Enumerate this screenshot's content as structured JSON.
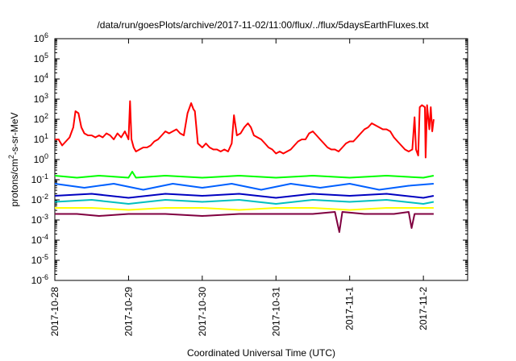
{
  "chart_data": {
    "type": "line",
    "title": "/data/run/goesPlots/archive/2017-11-02/11:00/flux/../flux/5daysEarthFluxes.txt",
    "xlabel": "Coordinated Universal Time (UTC)",
    "ylabel_parts": [
      "protons/cm",
      "2",
      "-s-sr-MeV"
    ],
    "y_scale": "log",
    "ylim_exp": [
      -6,
      6
    ],
    "y_ticks": [
      {
        "base": "10",
        "exp": "6"
      },
      {
        "base": "10",
        "exp": "5"
      },
      {
        "base": "10",
        "exp": "4"
      },
      {
        "base": "10",
        "exp": "3"
      },
      {
        "base": "10",
        "exp": "2"
      },
      {
        "base": "10",
        "exp": "1"
      },
      {
        "base": "10",
        "exp": "0"
      },
      {
        "base": "10",
        "exp": "-1"
      },
      {
        "base": "10",
        "exp": "-2"
      },
      {
        "base": "10",
        "exp": "-3"
      },
      {
        "base": "10",
        "exp": "-4"
      },
      {
        "base": "10",
        "exp": "-5"
      },
      {
        "base": "10",
        "exp": "-6"
      }
    ],
    "x_range_days": [
      0,
      5.6
    ],
    "x_ticks": [
      "2017-10-28",
      "2017-10-29",
      "2017-10-30",
      "2017-10-31",
      "2017-11-1",
      "2017-11-2"
    ],
    "grid": false,
    "legend": "none",
    "series": [
      {
        "color": "#ff0000",
        "points": [
          [
            0.0,
            1.0
          ],
          [
            0.05,
            1.0
          ],
          [
            0.1,
            0.7
          ],
          [
            0.15,
            0.9
          ],
          [
            0.2,
            1.1
          ],
          [
            0.25,
            1.6
          ],
          [
            0.28,
            2.4
          ],
          [
            0.32,
            2.3
          ],
          [
            0.36,
            1.6
          ],
          [
            0.4,
            1.3
          ],
          [
            0.45,
            1.2
          ],
          [
            0.5,
            1.2
          ],
          [
            0.55,
            1.1
          ],
          [
            0.6,
            1.2
          ],
          [
            0.65,
            1.1
          ],
          [
            0.7,
            1.3
          ],
          [
            0.75,
            1.2
          ],
          [
            0.8,
            1.0
          ],
          [
            0.85,
            1.3
          ],
          [
            0.9,
            1.1
          ],
          [
            0.95,
            1.4
          ],
          [
            1.0,
            1.0
          ],
          [
            1.02,
            2.9
          ],
          [
            1.04,
            1.0
          ],
          [
            1.07,
            0.6
          ],
          [
            1.1,
            0.4
          ],
          [
            1.15,
            0.5
          ],
          [
            1.2,
            0.6
          ],
          [
            1.25,
            0.6
          ],
          [
            1.3,
            0.7
          ],
          [
            1.35,
            0.9
          ],
          [
            1.4,
            1.0
          ],
          [
            1.45,
            1.2
          ],
          [
            1.5,
            1.4
          ],
          [
            1.55,
            1.3
          ],
          [
            1.6,
            1.4
          ],
          [
            1.65,
            1.5
          ],
          [
            1.7,
            1.3
          ],
          [
            1.75,
            1.2
          ],
          [
            1.8,
            2.3
          ],
          [
            1.85,
            2.8
          ],
          [
            1.88,
            2.5
          ],
          [
            1.9,
            2.4
          ],
          [
            1.94,
            0.8
          ],
          [
            2.0,
            0.6
          ],
          [
            2.05,
            0.8
          ],
          [
            2.1,
            0.6
          ],
          [
            2.15,
            0.5
          ],
          [
            2.2,
            0.5
          ],
          [
            2.25,
            0.4
          ],
          [
            2.3,
            0.5
          ],
          [
            2.35,
            0.4
          ],
          [
            2.4,
            0.8
          ],
          [
            2.43,
            2.2
          ],
          [
            2.47,
            1.2
          ],
          [
            2.52,
            1.3
          ],
          [
            2.57,
            1.6
          ],
          [
            2.62,
            1.8
          ],
          [
            2.66,
            1.6
          ],
          [
            2.7,
            1.2
          ],
          [
            2.75,
            1.1
          ],
          [
            2.8,
            1.0
          ],
          [
            2.85,
            0.8
          ],
          [
            2.9,
            0.6
          ],
          [
            2.95,
            0.5
          ],
          [
            3.0,
            0.3
          ],
          [
            3.05,
            0.4
          ],
          [
            3.1,
            0.3
          ],
          [
            3.15,
            0.4
          ],
          [
            3.2,
            0.5
          ],
          [
            3.25,
            0.7
          ],
          [
            3.3,
            0.9
          ],
          [
            3.35,
            1.0
          ],
          [
            3.4,
            1.0
          ],
          [
            3.45,
            1.3
          ],
          [
            3.5,
            1.4
          ],
          [
            3.55,
            1.2
          ],
          [
            3.6,
            1.0
          ],
          [
            3.65,
            0.8
          ],
          [
            3.7,
            0.6
          ],
          [
            3.75,
            0.5
          ],
          [
            3.8,
            0.5
          ],
          [
            3.85,
            0.4
          ],
          [
            3.9,
            0.6
          ],
          [
            3.95,
            0.8
          ],
          [
            4.0,
            0.9
          ],
          [
            4.05,
            0.9
          ],
          [
            4.1,
            1.1
          ],
          [
            4.15,
            1.3
          ],
          [
            4.2,
            1.5
          ],
          [
            4.25,
            1.6
          ],
          [
            4.3,
            1.8
          ],
          [
            4.35,
            1.7
          ],
          [
            4.4,
            1.6
          ],
          [
            4.45,
            1.5
          ],
          [
            4.5,
            1.5
          ],
          [
            4.55,
            1.4
          ],
          [
            4.6,
            1.1
          ],
          [
            4.65,
            0.9
          ],
          [
            4.7,
            0.7
          ],
          [
            4.75,
            0.5
          ],
          [
            4.8,
            0.4
          ],
          [
            4.85,
            0.5
          ],
          [
            4.88,
            2.1
          ],
          [
            4.9,
            0.5
          ],
          [
            4.93,
            0.2
          ],
          [
            4.95,
            2.6
          ],
          [
            4.98,
            2.7
          ],
          [
            5.02,
            2.6
          ],
          [
            5.03,
            0.1
          ],
          [
            5.05,
            2.7
          ],
          [
            5.08,
            1.5
          ],
          [
            5.1,
            2.6
          ],
          [
            5.12,
            1.4
          ],
          [
            5.14,
            2.0
          ]
        ]
      },
      {
        "color": "#00ff00",
        "points": [
          [
            0.0,
            -0.8
          ],
          [
            0.3,
            -0.9
          ],
          [
            0.6,
            -0.8
          ],
          [
            1.0,
            -0.9
          ],
          [
            1.05,
            -0.6
          ],
          [
            1.1,
            -0.9
          ],
          [
            1.5,
            -0.8
          ],
          [
            2.0,
            -0.9
          ],
          [
            2.5,
            -0.8
          ],
          [
            3.0,
            -0.9
          ],
          [
            3.5,
            -0.8
          ],
          [
            4.0,
            -0.9
          ],
          [
            4.5,
            -0.8
          ],
          [
            5.0,
            -0.9
          ],
          [
            5.14,
            -0.8
          ]
        ]
      },
      {
        "color": "#0060ff",
        "points": [
          [
            0.0,
            -1.2
          ],
          [
            0.4,
            -1.4
          ],
          [
            0.8,
            -1.2
          ],
          [
            1.2,
            -1.5
          ],
          [
            1.6,
            -1.2
          ],
          [
            2.0,
            -1.4
          ],
          [
            2.4,
            -1.2
          ],
          [
            2.8,
            -1.5
          ],
          [
            3.2,
            -1.2
          ],
          [
            3.6,
            -1.4
          ],
          [
            4.0,
            -1.2
          ],
          [
            4.4,
            -1.5
          ],
          [
            4.8,
            -1.3
          ],
          [
            5.14,
            -1.2
          ]
        ]
      },
      {
        "color": "#0000c0",
        "points": [
          [
            0.0,
            -1.8
          ],
          [
            0.5,
            -1.7
          ],
          [
            1.0,
            -1.9
          ],
          [
            1.5,
            -1.7
          ],
          [
            2.0,
            -1.8
          ],
          [
            2.5,
            -1.7
          ],
          [
            3.0,
            -1.9
          ],
          [
            3.5,
            -1.7
          ],
          [
            4.0,
            -1.8
          ],
          [
            4.5,
            -1.7
          ],
          [
            5.0,
            -1.9
          ],
          [
            5.14,
            -1.8
          ]
        ]
      },
      {
        "color": "#00c0c0",
        "points": [
          [
            0.0,
            -2.1
          ],
          [
            0.5,
            -2.0
          ],
          [
            1.0,
            -2.2
          ],
          [
            1.5,
            -2.0
          ],
          [
            2.0,
            -2.1
          ],
          [
            2.5,
            -2.0
          ],
          [
            3.0,
            -2.2
          ],
          [
            3.5,
            -2.0
          ],
          [
            4.0,
            -2.1
          ],
          [
            4.5,
            -2.0
          ],
          [
            5.0,
            -2.2
          ],
          [
            5.14,
            -2.1
          ]
        ]
      },
      {
        "color": "#ffff00",
        "points": [
          [
            0.0,
            -2.4
          ],
          [
            0.5,
            -2.4
          ],
          [
            1.0,
            -2.5
          ],
          [
            1.5,
            -2.4
          ],
          [
            2.0,
            -2.4
          ],
          [
            2.5,
            -2.5
          ],
          [
            3.0,
            -2.4
          ],
          [
            3.5,
            -2.4
          ],
          [
            4.0,
            -2.5
          ],
          [
            4.5,
            -2.4
          ],
          [
            5.0,
            -2.4
          ],
          [
            5.14,
            -2.4
          ]
        ]
      },
      {
        "color": "#800040",
        "points": [
          [
            0.0,
            -2.7
          ],
          [
            0.3,
            -2.7
          ],
          [
            0.6,
            -2.8
          ],
          [
            1.0,
            -2.7
          ],
          [
            1.5,
            -2.7
          ],
          [
            2.0,
            -2.8
          ],
          [
            2.5,
            -2.7
          ],
          [
            3.0,
            -2.7
          ],
          [
            3.5,
            -2.7
          ],
          [
            3.8,
            -2.6
          ],
          [
            3.86,
            -3.6
          ],
          [
            3.9,
            -2.6
          ],
          [
            4.2,
            -2.7
          ],
          [
            4.6,
            -2.7
          ],
          [
            4.8,
            -2.6
          ],
          [
            4.84,
            -3.4
          ],
          [
            4.88,
            -2.7
          ],
          [
            5.14,
            -2.7
          ]
        ]
      }
    ]
  }
}
